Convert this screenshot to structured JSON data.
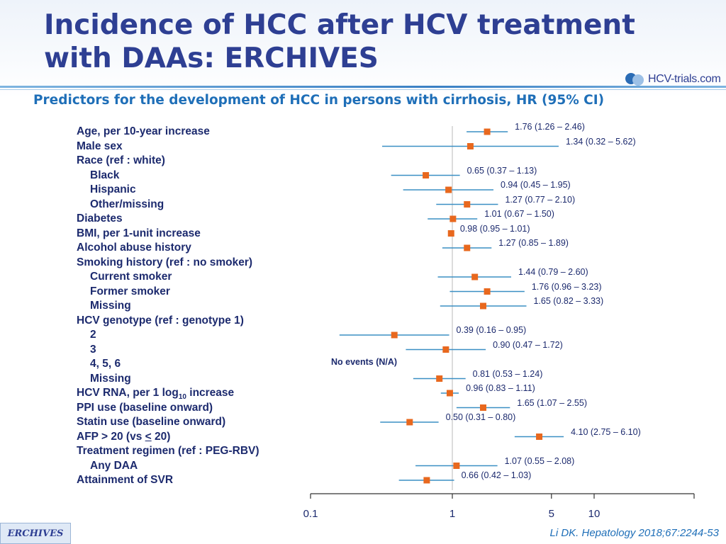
{
  "slide": {
    "title_line1": "Incidence of HCC after HCV treatment",
    "title_line2": "with DAAs: ERCHIVES",
    "subtitle": "Predictors for the development of HCC in persons with cirrhosis, HR (95% CI)",
    "logo_text": "HCV-trials.com",
    "footer_badge": "ERCHIVES",
    "citation": "Li DK. Hepatology 2018;67:2244-53",
    "colors": {
      "title": "#2e3f93",
      "subtitle": "#1f6fb8",
      "marker": "#e8681e",
      "ci_line": "#3a8fc4"
    }
  },
  "chart_data": {
    "type": "forest",
    "xscale": "log",
    "xlim": [
      0.1,
      15
    ],
    "ticks": [
      0.1,
      1,
      5,
      10
    ],
    "tick_labels": [
      "0.1",
      "1",
      "5",
      "10"
    ],
    "reference_line": 1,
    "no_events_text": "No events (N/A)",
    "rows": [
      {
        "label": "Age, per 10-year increase",
        "indent": false,
        "hr": 1.76,
        "lo": 1.26,
        "hi": 2.46,
        "ci_text": "1.76 (1.26 – 2.46)"
      },
      {
        "label": "Male sex",
        "indent": false,
        "hr": 1.34,
        "lo": 0.32,
        "hi": 5.62,
        "ci_text": "1.34 (0.32 – 5.62)"
      },
      {
        "label": "Race (ref : white)",
        "indent": false
      },
      {
        "label": "Black",
        "indent": true,
        "hr": 0.65,
        "lo": 0.37,
        "hi": 1.13,
        "ci_text": "0.65 (0.37 – 1.13)"
      },
      {
        "label": "Hispanic",
        "indent": true,
        "hr": 0.94,
        "lo": 0.45,
        "hi": 1.95,
        "ci_text": "0.94 (0.45 – 1.95)"
      },
      {
        "label": "Other/missing",
        "indent": true,
        "hr": 1.27,
        "lo": 0.77,
        "hi": 2.1,
        "ci_text": "1.27 (0.77 – 2.10)"
      },
      {
        "label": "Diabetes",
        "indent": false,
        "hr": 1.01,
        "lo": 0.67,
        "hi": 1.5,
        "ci_text": "1.01 (0.67 – 1.50)"
      },
      {
        "label": "BMI, per 1-unit increase",
        "indent": false,
        "hr": 0.98,
        "lo": 0.95,
        "hi": 1.01,
        "ci_text": "0.98 (0.95 – 1.01)"
      },
      {
        "label": "Alcohol abuse history",
        "indent": false,
        "hr": 1.27,
        "lo": 0.85,
        "hi": 1.89,
        "ci_text": "1.27 (0.85 – 1.89)"
      },
      {
        "label": "Smoking history (ref : no smoker)",
        "indent": false
      },
      {
        "label": "Current smoker",
        "indent": true,
        "hr": 1.44,
        "lo": 0.79,
        "hi": 2.6,
        "ci_text": "1.44 (0.79 – 2.60)"
      },
      {
        "label": "Former smoker",
        "indent": true,
        "hr": 1.76,
        "lo": 0.96,
        "hi": 3.23,
        "ci_text": "1.76 (0.96 – 3.23)"
      },
      {
        "label": "Missing",
        "indent": true,
        "hr": 1.65,
        "lo": 0.82,
        "hi": 3.33,
        "ci_text": "1.65 (0.82 – 3.33)"
      },
      {
        "label": "HCV genotype (ref : genotype 1)",
        "indent": false
      },
      {
        "label": "2",
        "indent": true,
        "hr": 0.39,
        "lo": 0.16,
        "hi": 0.95,
        "ci_text": "0.39 (0.16 – 0.95)"
      },
      {
        "label": "3",
        "indent": true,
        "hr": 0.9,
        "lo": 0.47,
        "hi": 1.72,
        "ci_text": "0.90 (0.47 – 1.72)"
      },
      {
        "label": "4, 5, 6",
        "indent": true,
        "no_events": true
      },
      {
        "label": "Missing",
        "indent": true,
        "hr": 0.81,
        "lo": 0.53,
        "hi": 1.24,
        "ci_text": "0.81 (0.53 – 1.24)"
      },
      {
        "label_pre": "HCV RNA, per 1 log",
        "label_sub": "10",
        "label_post": " increase",
        "indent": false,
        "hr": 0.96,
        "lo": 0.83,
        "hi": 1.11,
        "ci_text": "0.96 (0.83 – 1.11)"
      },
      {
        "label": "PPI use (baseline onward)",
        "indent": false,
        "hr": 1.65,
        "lo": 1.07,
        "hi": 2.55,
        "ci_text": "1.65 (1.07 – 2.55)"
      },
      {
        "label": "Statin use (baseline onward)",
        "indent": false,
        "hr": 0.5,
        "lo": 0.31,
        "hi": 0.8,
        "ci_text": "0.50 (0.31 – 0.80)"
      },
      {
        "label_pre": "AFP > 20 (vs ",
        "label_u": "<",
        "label_post": " 20)",
        "indent": false,
        "hr": 4.1,
        "lo": 2.75,
        "hi": 6.1,
        "ci_text": "4.10 (2.75 – 6.10)"
      },
      {
        "label": "Treatment regimen (ref : PEG-RBV)",
        "indent": false
      },
      {
        "label": "Any DAA",
        "indent": true,
        "hr": 1.07,
        "lo": 0.55,
        "hi": 2.08,
        "ci_text": "1.07 (0.55 – 2.08)"
      },
      {
        "label": "Attainment of SVR",
        "indent": false,
        "hr": 0.66,
        "lo": 0.42,
        "hi": 1.03,
        "ci_text": "0.66 (0.42 – 1.03)"
      }
    ]
  }
}
